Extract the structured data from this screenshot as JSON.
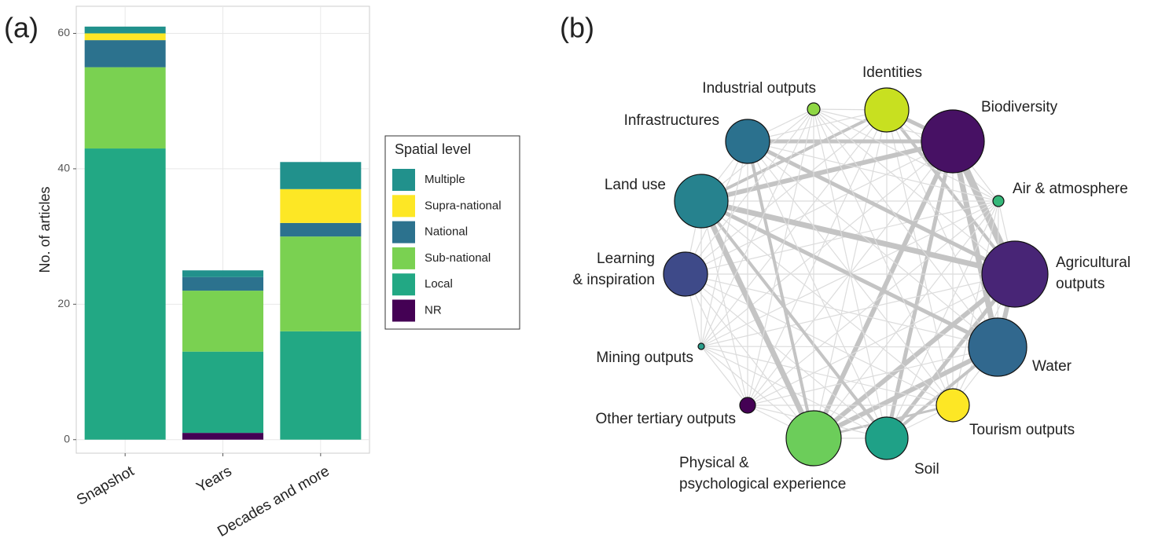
{
  "chart_data": [
    {
      "type": "bar",
      "panel_label": "(a)",
      "y_label": "No. of articles",
      "categories": [
        "Snapshot",
        "Years",
        "Decades and more"
      ],
      "legend_title": "Spatial level",
      "series": [
        {
          "name": "Multiple",
          "color": "#21918c",
          "values": [
            1,
            1,
            4
          ]
        },
        {
          "name": "Supra-national",
          "color": "#fde725",
          "values": [
            1,
            0,
            5
          ]
        },
        {
          "name": "National",
          "color": "#2c728e",
          "values": [
            4,
            2,
            2
          ]
        },
        {
          "name": "Sub-national",
          "color": "#7ad151",
          "values": [
            12,
            9,
            14
          ]
        },
        {
          "name": "Local",
          "color": "#22a884",
          "values": [
            43,
            12,
            16
          ]
        },
        {
          "name": "NR",
          "color": "#440154",
          "values": [
            0,
            1,
            0
          ]
        }
      ],
      "ylim": [
        -2,
        64
      ],
      "yticks": [
        0,
        20,
        40,
        60
      ],
      "grid": true
    },
    {
      "type": "network",
      "panel_label": "(b)",
      "nodes": [
        {
          "label": [
            "Identities"
          ],
          "color": "#c8e020"
        },
        {
          "label": [
            "Biodiversity"
          ],
          "color": "#471164"
        },
        {
          "label": [
            "Air & atmosphere"
          ],
          "color": "#35b779"
        },
        {
          "label": [
            "Agricultural",
            "outputs"
          ],
          "color": "#482576"
        },
        {
          "label": [
            "Water"
          ],
          "color": "#31688e"
        },
        {
          "label": [
            "Tourism outputs"
          ],
          "color": "#fde725"
        },
        {
          "label": [
            "Soil"
          ],
          "color": "#1fa187"
        },
        {
          "label": [
            "Physical &",
            "psychological experience"
          ],
          "color": "#6ccd5a"
        },
        {
          "label": [
            "Other tertiary outputs"
          ],
          "color": "#440154"
        },
        {
          "label": [
            "Mining outputs"
          ],
          "color": "#2a9d8a"
        },
        {
          "label": [
            "Learning",
            "& inspiration"
          ],
          "color": "#3e4a89"
        },
        {
          "label": [
            "Land use"
          ],
          "color": "#26828e"
        },
        {
          "label": [
            "Infrastructures"
          ],
          "color": "#2b718e"
        },
        {
          "label": [
            "Industrial outputs"
          ],
          "color": "#8fd744"
        }
      ]
    }
  ]
}
